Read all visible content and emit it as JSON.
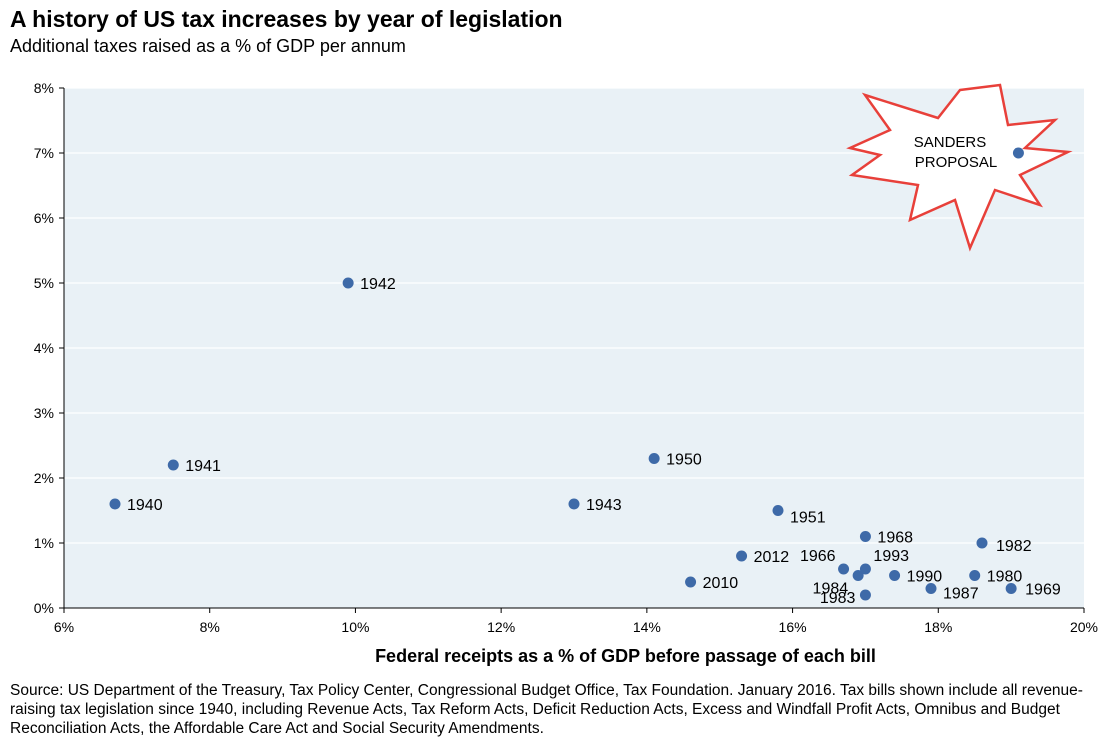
{
  "title": "A history of US tax increases by year of legislation",
  "subtitle": "Additional taxes raised as a % of GDP per annum",
  "source": "Source: US Department of the Treasury, Tax Policy Center, Congressional Budget Office, Tax Foundation. January 2016.  Tax bills shown include all revenue-raising tax legislation since 1940, including Revenue Acts, Tax Reform Acts, Deficit Reduction Acts, Excess and Windfall Profit Acts, Omnibus and Budget Reconciliation Acts, the Affordable Care Act and Social Security Amendments.",
  "colors": {
    "plot_bg": "#e9f1f6",
    "point": "#3e6aa8",
    "burst_stroke": "#e8403a",
    "grid": "#ffffff"
  },
  "chart_data": {
    "type": "scatter",
    "xlabel": "Federal receipts as a % of GDP before passage of each bill",
    "ylabel": "",
    "xlim": [
      6,
      20
    ],
    "ylim": [
      0,
      8
    ],
    "x_ticks": [
      "6%",
      "8%",
      "10%",
      "12%",
      "14%",
      "16%",
      "18%",
      "20%"
    ],
    "y_ticks": [
      "0%",
      "1%",
      "2%",
      "3%",
      "4%",
      "5%",
      "6%",
      "7%",
      "8%"
    ],
    "grid": true,
    "points": [
      {
        "label": "1940",
        "x": 6.7,
        "y": 1.6
      },
      {
        "label": "1941",
        "x": 7.5,
        "y": 2.2
      },
      {
        "label": "1942",
        "x": 9.9,
        "y": 5.0
      },
      {
        "label": "1943",
        "x": 13.0,
        "y": 1.6
      },
      {
        "label": "1950",
        "x": 14.1,
        "y": 2.3
      },
      {
        "label": "1951",
        "x": 15.8,
        "y": 1.5
      },
      {
        "label": "2010",
        "x": 14.6,
        "y": 0.4
      },
      {
        "label": "2012",
        "x": 15.3,
        "y": 0.8
      },
      {
        "label": "1966",
        "x": 16.7,
        "y": 0.6
      },
      {
        "label": "1984",
        "x": 16.9,
        "y": 0.5
      },
      {
        "label": "1968",
        "x": 17.0,
        "y": 1.1
      },
      {
        "label": "1993",
        "x": 17.0,
        "y": 0.6
      },
      {
        "label": "1983",
        "x": 17.0,
        "y": 0.2
      },
      {
        "label": "1990",
        "x": 17.4,
        "y": 0.5
      },
      {
        "label": "1987",
        "x": 17.9,
        "y": 0.3
      },
      {
        "label": "1980",
        "x": 18.5,
        "y": 0.5
      },
      {
        "label": "1982",
        "x": 18.6,
        "y": 1.0
      },
      {
        "label": "1969",
        "x": 19.0,
        "y": 0.3
      },
      {
        "label": "SANDERS PROPOSAL",
        "x": 19.1,
        "y": 7.0
      }
    ],
    "annotations": [
      "SANDERS",
      "PROPOSAL"
    ]
  }
}
